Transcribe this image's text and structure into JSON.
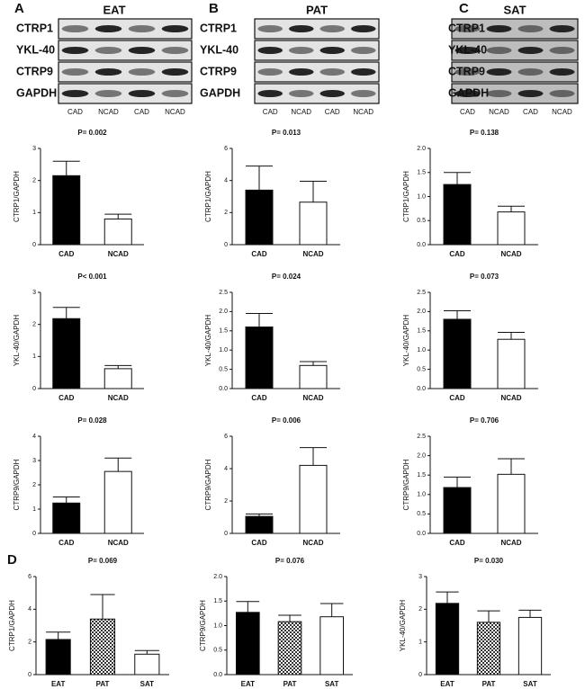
{
  "panel_labels": [
    "A",
    "B",
    "C",
    "D"
  ],
  "blots": [
    {
      "tissue": "EAT",
      "rows": [
        "CTRP1",
        "YKL-40",
        "CTRP9",
        "GAPDH"
      ],
      "lanes": [
        "CAD",
        "NCAD",
        "CAD",
        "NCAD"
      ]
    },
    {
      "tissue": "PAT",
      "rows": [
        "CTRP1",
        "YKL-40",
        "CTRP9",
        "GAPDH"
      ],
      "lanes": [
        "CAD",
        "NCAD",
        "CAD",
        "NCAD"
      ]
    },
    {
      "tissue": "SAT",
      "rows": [
        "CTRP1",
        "YKL-40",
        "CTRP9",
        "GAPDH"
      ],
      "lanes": [
        "CAD",
        "NCAD",
        "CAD",
        "NCAD"
      ]
    }
  ],
  "chart_data": [
    {
      "type": "bar",
      "title": "P= 0.002",
      "ylabel": "CTRP1/GAPDH",
      "categories": [
        "CAD",
        "NCAD"
      ],
      "values": [
        2.15,
        0.8
      ],
      "errors": [
        0.45,
        0.15
      ],
      "fills": [
        "#000000",
        "#ffffff"
      ],
      "ylim": [
        0,
        3
      ],
      "yticks": [
        0,
        1,
        2,
        3
      ]
    },
    {
      "type": "bar",
      "title": "P= 0.013",
      "ylabel": "CTRP1/GAPDH",
      "categories": [
        "CAD",
        "NCAD"
      ],
      "values": [
        3.4,
        2.65
      ],
      "errors": [
        1.5,
        1.3
      ],
      "fills": [
        "#000000",
        "#ffffff"
      ],
      "ylim": [
        0,
        6
      ],
      "yticks": [
        0,
        2,
        4,
        6
      ]
    },
    {
      "type": "bar",
      "title": "P= 0.138",
      "ylabel": "CTRP1/GAPDH",
      "categories": [
        "CAD",
        "NCAD"
      ],
      "values": [
        1.25,
        0.68
      ],
      "errors": [
        0.25,
        0.12
      ],
      "fills": [
        "#000000",
        "#ffffff"
      ],
      "ylim": [
        0,
        2
      ],
      "yticks": [
        {
          "value": 0,
          "label": "0.0"
        },
        0.5,
        {
          "value": 1,
          "label": "1.0"
        },
        1.5,
        {
          "value": 2,
          "label": "2.0"
        }
      ]
    },
    {
      "type": "bar",
      "title": "P< 0.001",
      "ylabel": "YKL-40/GAPDH",
      "categories": [
        "CAD",
        "NCAD"
      ],
      "values": [
        2.18,
        0.62
      ],
      "errors": [
        0.35,
        0.1
      ],
      "fills": [
        "#000000",
        "#ffffff"
      ],
      "ylim": [
        0,
        3
      ],
      "yticks": [
        0,
        1,
        2,
        3
      ]
    },
    {
      "type": "bar",
      "title": "P= 0.024",
      "ylabel": "YKL-40/GAPDH",
      "categories": [
        "CAD",
        "NCAD"
      ],
      "values": [
        1.6,
        0.6
      ],
      "errors": [
        0.35,
        0.1
      ],
      "fills": [
        "#000000",
        "#ffffff"
      ],
      "ylim": [
        0,
        2.5
      ],
      "yticks": [
        {
          "value": 0,
          "label": "0.0"
        },
        0.5,
        {
          "value": 1,
          "label": "1.0"
        },
        1.5,
        {
          "value": 2,
          "label": "2.0"
        },
        2.5
      ]
    },
    {
      "type": "bar",
      "title": "P= 0.073",
      "ylabel": "YKL-40/GAPDH",
      "categories": [
        "CAD",
        "NCAD"
      ],
      "values": [
        1.8,
        1.28
      ],
      "errors": [
        0.22,
        0.18
      ],
      "fills": [
        "#000000",
        "#ffffff"
      ],
      "ylim": [
        0,
        2.5
      ],
      "yticks": [
        {
          "value": 0,
          "label": "0.0"
        },
        0.5,
        {
          "value": 1,
          "label": "1.0"
        },
        1.5,
        {
          "value": 2,
          "label": "2.0"
        },
        2.5
      ]
    },
    {
      "type": "bar",
      "title": "P= 0.028",
      "ylabel": "CTRP9/GAPDH",
      "categories": [
        "CAD",
        "NCAD"
      ],
      "values": [
        1.25,
        2.55
      ],
      "errors": [
        0.25,
        0.55
      ],
      "fills": [
        "#000000",
        "#ffffff"
      ],
      "ylim": [
        0,
        4
      ],
      "yticks": [
        0,
        1,
        2,
        3,
        4
      ]
    },
    {
      "type": "bar",
      "title": "P= 0.006",
      "ylabel": "CTRP9/GAPDH",
      "categories": [
        "CAD",
        "NCAD"
      ],
      "values": [
        1.05,
        4.2
      ],
      "errors": [
        0.15,
        1.1
      ],
      "fills": [
        "#000000",
        "#ffffff"
      ],
      "ylim": [
        0,
        6
      ],
      "yticks": [
        0,
        2,
        4,
        6
      ]
    },
    {
      "type": "bar",
      "title": "P= 0.706",
      "ylabel": "CTRP9/GAPDH",
      "categories": [
        "CAD",
        "NCAD"
      ],
      "values": [
        1.18,
        1.52
      ],
      "errors": [
        0.27,
        0.4
      ],
      "fills": [
        "#000000",
        "#ffffff"
      ],
      "ylim": [
        0,
        2.5
      ],
      "yticks": [
        {
          "value": 0,
          "label": "0.0"
        },
        0.5,
        {
          "value": 1,
          "label": "1.0"
        },
        1.5,
        {
          "value": 2,
          "label": "2.0"
        },
        2.5
      ]
    },
    {
      "type": "bar",
      "title": "P= 0.069",
      "ylabel": "CTRP1/GAPDH",
      "categories": [
        "EAT",
        "PAT",
        "SAT"
      ],
      "values": [
        2.15,
        3.4,
        1.25
      ],
      "errors": [
        0.45,
        1.5,
        0.22
      ],
      "fills": [
        "#000000",
        "checker",
        "#ffffff"
      ],
      "ylim": [
        0,
        6
      ],
      "yticks": [
        0,
        2,
        4,
        6
      ]
    },
    {
      "type": "bar",
      "title": "P= 0.076",
      "ylabel": "CTRP9/GAPDH",
      "categories": [
        "EAT",
        "PAT",
        "SAT"
      ],
      "values": [
        1.27,
        1.08,
        1.18
      ],
      "errors": [
        0.22,
        0.13,
        0.27
      ],
      "fills": [
        "#000000",
        "checker",
        "#ffffff"
      ],
      "ylim": [
        0,
        2
      ],
      "yticks": [
        {
          "value": 0,
          "label": "0.0"
        },
        0.5,
        {
          "value": 1,
          "label": "1.0"
        },
        1.5,
        {
          "value": 2,
          "label": "2.0"
        }
      ]
    },
    {
      "type": "bar",
      "title": "P= 0.030",
      "ylabel": "YKL-40/GAPDH",
      "categories": [
        "EAT",
        "PAT",
        "SAT"
      ],
      "values": [
        2.18,
        1.6,
        1.75
      ],
      "errors": [
        0.35,
        0.35,
        0.22
      ],
      "fills": [
        "#000000",
        "checker",
        "#ffffff"
      ],
      "ylim": [
        0,
        3
      ],
      "yticks": [
        0,
        1,
        2,
        3
      ]
    }
  ]
}
